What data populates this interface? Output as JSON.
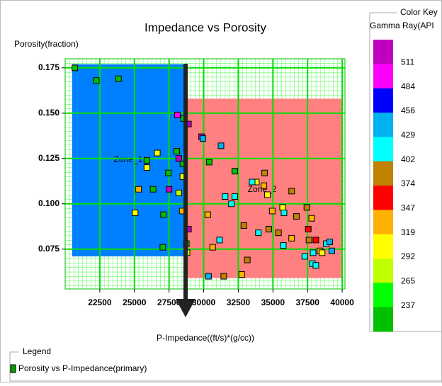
{
  "chart_data": {
    "type": "scatter",
    "title": "Impedance vs Porosity",
    "y_label": "Porosity(fraction)",
    "x_label": "P-Impedance((ft/s)*(g/cc))",
    "xlim": [
      20000,
      40200
    ],
    "ylim": [
      0.053,
      0.18
    ],
    "xticks": [
      22500,
      25000,
      27500,
      30000,
      32500,
      35000,
      37500,
      40000
    ],
    "yticks": [
      0.075,
      {
        "value": 0.1,
        "label": "0.100"
      },
      0.125,
      {
        "value": 0.15,
        "label": "0.150"
      },
      0.175
    ],
    "grid": true,
    "zones": [
      {
        "name": "Zone_1",
        "x": [
          20500,
          28850
        ],
        "y": [
          0.071,
          0.177
        ],
        "color": "#0080ff"
      },
      {
        "name": "Zone_2",
        "x": [
          28700,
          40000
        ],
        "y": [
          0.059,
          0.158
        ],
        "color": "#ff8080"
      }
    ],
    "series": [
      {
        "name": "Porosity vs P-Impedance(primary)",
        "color": "#00a000",
        "x": [
          20700,
          22250,
          23850,
          28100,
          28550,
          28900,
          29850,
          29950,
          31250,
          28050,
          26650,
          28200,
          25900,
          28500,
          30400,
          25900,
          27450,
          32250,
          34400,
          28500,
          33800,
          33500,
          34350,
          25300,
          26350,
          27500,
          28200,
          31550,
          32250,
          36350,
          34600,
          32000,
          35700,
          37450,
          34950,
          25050,
          30300,
          27100,
          28450,
          35800,
          36700,
          37800,
          28900,
          32900,
          34700,
          33950,
          37550,
          35400,
          36350,
          31150,
          37600,
          28750,
          27050,
          30650,
          35750,
          38850,
          39100,
          38100,
          39250,
          37900,
          38400,
          37300,
          28800,
          37850,
          38100,
          33150,
          30350,
          31450,
          32750,
          38550
        ],
        "values": [
          0.175,
          0.168,
          0.169,
          0.149,
          0.147,
          0.144,
          0.137,
          0.136,
          0.132,
          0.129,
          0.128,
          0.125,
          0.124,
          0.122,
          0.123,
          0.12,
          0.117,
          0.118,
          0.117,
          0.115,
          0.112,
          0.112,
          0.11,
          0.108,
          0.108,
          0.108,
          0.106,
          0.104,
          0.104,
          0.107,
          0.105,
          0.1,
          0.098,
          0.098,
          0.096,
          0.095,
          0.094,
          0.094,
          0.096,
          0.095,
          0.093,
          0.092,
          0.086,
          0.088,
          0.086,
          0.084,
          0.086,
          0.084,
          0.081,
          0.08,
          0.08,
          0.078,
          0.076,
          0.076,
          0.077,
          0.078,
          0.079,
          0.08,
          0.074,
          0.073,
          0.074,
          0.071,
          0.073,
          0.067,
          0.066,
          0.069,
          0.06,
          0.06,
          0.061,
          0.073
        ],
        "colors": [
          "#00c000",
          "#00c000",
          "#00c000",
          "#ff00ff",
          "#00c000",
          "#c000c0",
          "#c000c0",
          "#00b0f0",
          "#00b0f0",
          "#00c000",
          "#ffff00",
          "#c000c0",
          "#00c000",
          "#00c000",
          "#00c000",
          "#ffff00",
          "#00c000",
          "#00c000",
          "#c08000",
          "#ffff00",
          "#ffff00",
          "#00ffff",
          "#ffb000",
          "#ffb000",
          "#00c000",
          "#c000c0",
          "#c0ff00",
          "#00ffff",
          "#00ffff",
          "#c08000",
          "#ffff00",
          "#00ffff",
          "#ffff00",
          "#c08000",
          "#ffb000",
          "#ffff00",
          "#ffb000",
          "#00c000",
          "#ffb000",
          "#00ffff",
          "#c08000",
          "#ffb000",
          "#c000c0",
          "#c08000",
          "#c08000",
          "#00ffff",
          "#ff0000",
          "#c08000",
          "#ffb000",
          "#00ffff",
          "#c08000",
          "#00c000",
          "#00c000",
          "#ffb000",
          "#00ffff",
          "#00ffff",
          "#00b0f0",
          "#ff0000",
          "#00b0f0",
          "#00ffff",
          "#ffb000",
          "#00ffff",
          "#c0ff00",
          "#00ffff",
          "#00ffff",
          "#c08000",
          "#00b0f0",
          "#c08000",
          "#ffb000",
          "#ffff00"
        ]
      }
    ],
    "color_key": {
      "title": "Color Key",
      "label": "Gamma Ray(API",
      "colors": [
        "#c000c0",
        "#ff00ff",
        "#0000ff",
        "#00b0f0",
        "#00ffff",
        "#c08000",
        "#ff0000",
        "#ffb000",
        "#ffff00",
        "#c0ff00",
        "#00ff00",
        "#00c000"
      ],
      "ticks": [
        511,
        484,
        456,
        429,
        402,
        374,
        347,
        319,
        292,
        265,
        237
      ]
    },
    "legend_title": "Legend"
  }
}
